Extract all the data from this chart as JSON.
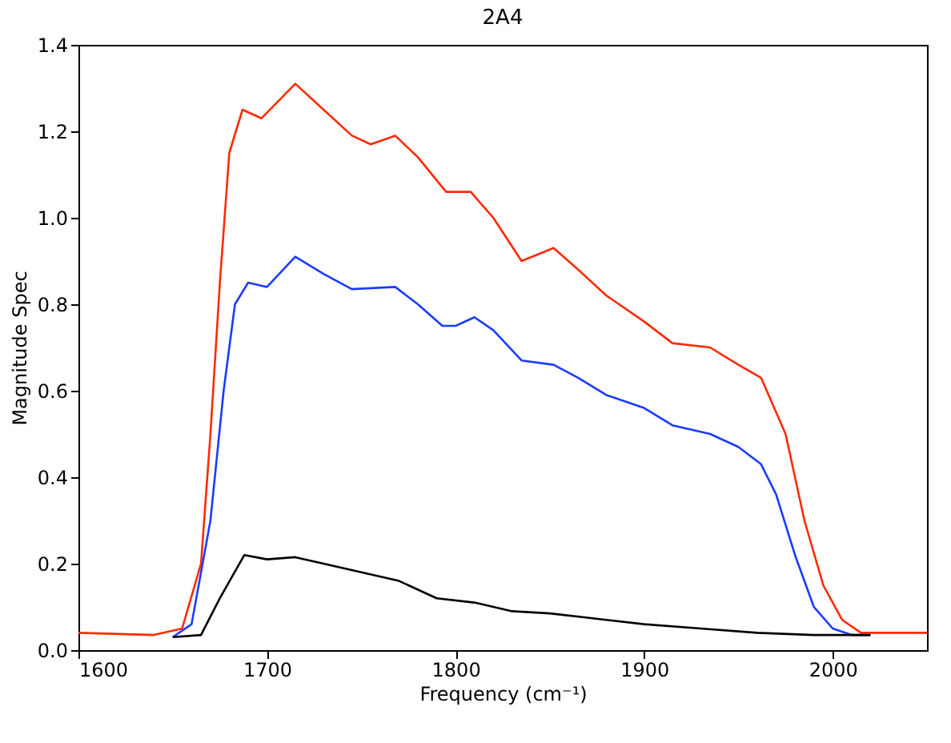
{
  "chart_data": {
    "type": "line",
    "title": "2A4",
    "xlabel": "Frequency (cm⁻¹)",
    "ylabel": "Magnitude Spec",
    "xlim": [
      1600,
      2050
    ],
    "xticks": [
      1600,
      1700,
      1800,
      1900,
      2000
    ],
    "ylim": [
      0,
      1.4
    ],
    "yticks": [
      {
        "value": 0,
        "label": "0.0"
      },
      0.2,
      0.4,
      0.6,
      0.8,
      {
        "value": 1,
        "label": "1.0"
      },
      1.2,
      1.4
    ],
    "grid": false,
    "legend": false,
    "series": [
      {
        "color": "#ff2a00",
        "x": [
          1600,
          1640,
          1655,
          1665,
          1670,
          1675,
          1680,
          1687,
          1697,
          1715,
          1730,
          1745,
          1755,
          1768,
          1780,
          1795,
          1808,
          1820,
          1835,
          1852,
          1865,
          1880,
          1900,
          1915,
          1935,
          1950,
          1962,
          1975,
          1985,
          1995,
          2005,
          2015,
          2050
        ],
        "values": [
          0.04,
          0.035,
          0.05,
          0.2,
          0.5,
          0.85,
          1.15,
          1.25,
          1.23,
          1.31,
          1.25,
          1.19,
          1.17,
          1.19,
          1.14,
          1.06,
          1.06,
          1.0,
          0.9,
          0.93,
          0.88,
          0.82,
          0.76,
          0.71,
          0.7,
          0.66,
          0.63,
          0.5,
          0.3,
          0.15,
          0.07,
          0.04,
          0.04
        ]
      },
      {
        "color": "#1a3cff",
        "x": [
          1650,
          1660,
          1670,
          1677,
          1683,
          1690,
          1700,
          1715,
          1730,
          1745,
          1768,
          1780,
          1793,
          1800,
          1810,
          1820,
          1835,
          1852,
          1865,
          1880,
          1900,
          1915,
          1935,
          1950,
          1962,
          1970,
          1980,
          1990,
          2000,
          2010,
          2020
        ],
        "values": [
          0.03,
          0.06,
          0.3,
          0.6,
          0.8,
          0.85,
          0.84,
          0.91,
          0.87,
          0.835,
          0.84,
          0.8,
          0.75,
          0.75,
          0.77,
          0.74,
          0.67,
          0.66,
          0.63,
          0.59,
          0.56,
          0.52,
          0.5,
          0.47,
          0.43,
          0.36,
          0.22,
          0.1,
          0.05,
          0.035,
          0.035
        ]
      },
      {
        "color": "#000000",
        "x": [
          1650,
          1665,
          1675,
          1688,
          1700,
          1715,
          1730,
          1750,
          1770,
          1790,
          1810,
          1830,
          1850,
          1870,
          1900,
          1930,
          1960,
          1990,
          2020
        ],
        "values": [
          0.03,
          0.035,
          0.12,
          0.22,
          0.21,
          0.215,
          0.2,
          0.18,
          0.16,
          0.12,
          0.11,
          0.09,
          0.085,
          0.075,
          0.06,
          0.05,
          0.04,
          0.035,
          0.035
        ]
      }
    ]
  }
}
